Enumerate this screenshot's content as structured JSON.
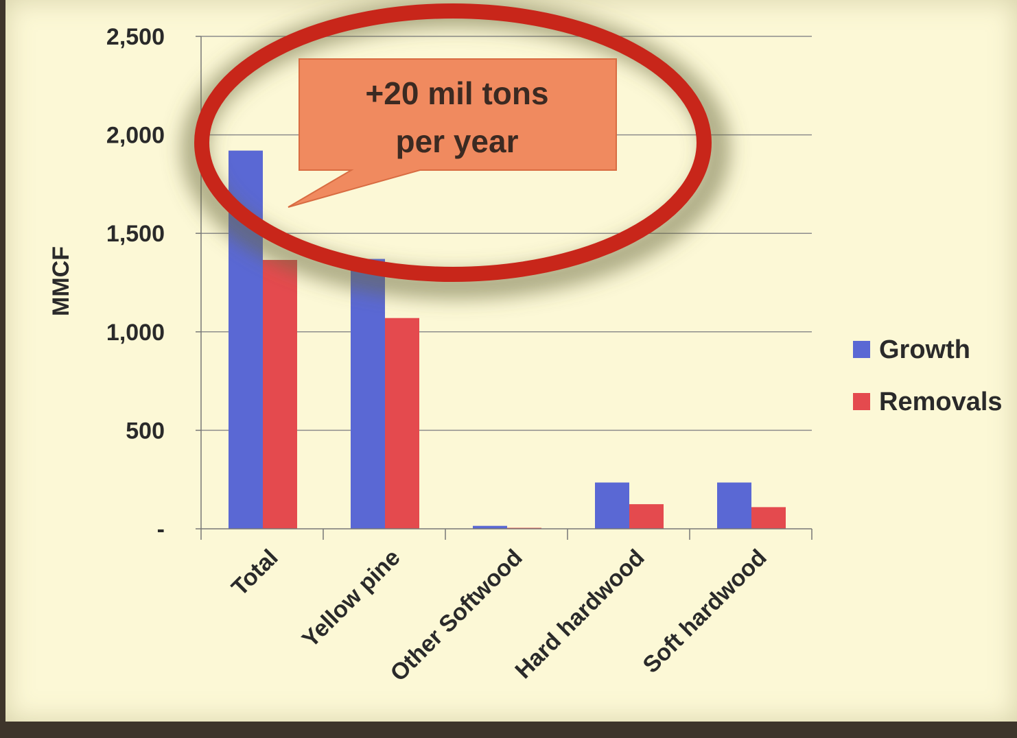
{
  "chart_data": {
    "type": "bar",
    "ylabel": "MMCF",
    "categories": [
      "Total",
      "Yellow pine",
      "Other Softwood",
      "Hard hardwood",
      "Soft hardwood"
    ],
    "series": [
      {
        "name": "Growth",
        "color": "#5a68d4",
        "values": [
          1920,
          1370,
          15,
          235,
          235
        ]
      },
      {
        "name": "Removals",
        "color": "#e44a4e",
        "values": [
          1365,
          1070,
          5,
          125,
          110
        ]
      }
    ],
    "ylim": [
      0,
      2500
    ],
    "yticks": [
      0,
      500,
      1000,
      1500,
      2000,
      2500
    ],
    "ytick_labels": [
      "-",
      "500",
      "1,000",
      "1,500",
      "2,000",
      "2,500"
    ],
    "grid": "horizontal",
    "legend_position": "right",
    "annotation": {
      "line1": "+20 mil tons",
      "line2": "per year",
      "callout_color": "#f08a5f",
      "highlight_ellipse_color": "#c8261a"
    }
  }
}
